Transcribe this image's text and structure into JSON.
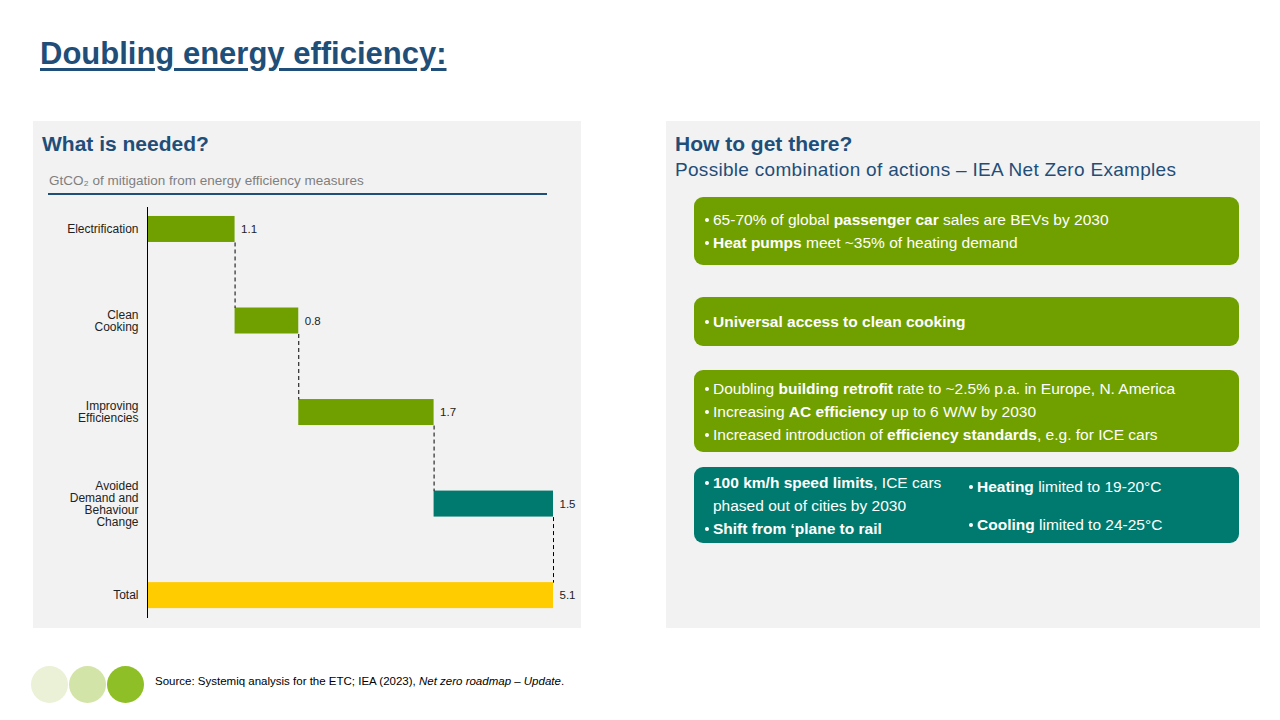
{
  "title": "Doubling energy efficiency:",
  "left_panel": {
    "heading": "What is needed?"
  },
  "chart_data": {
    "type": "waterfall",
    "subtitle": "GtCO₂ of mitigation from energy efficiency measures",
    "orientation": "horizontal",
    "categories": [
      "Electrification",
      "Clean Cooking",
      "Improving Efficiencies",
      "Avoided Demand and Behaviour Change",
      "Total"
    ],
    "values": [
      1.1,
      0.8,
      1.7,
      1.5,
      5.1
    ],
    "colors": [
      "#70a000",
      "#70a000",
      "#70a000",
      "#007a6e",
      "#ffcc00"
    ],
    "xlim": [
      0,
      5.1
    ],
    "data_labels": true,
    "tick_labels": "y"
  },
  "right_panel": {
    "heading": "How to get there?",
    "subheading": "Possible combination of actions – IEA Net Zero Examples",
    "boxes": [
      {
        "color": "#70a000",
        "columns": [
          [
            [
              {
                "t": "65-70% of global "
              },
              {
                "t": "passenger car",
                "b": true
              },
              {
                "t": " sales are BEVs by 2030"
              }
            ],
            [
              {
                "t": "Heat pumps",
                "b": true
              },
              {
                "t": " meet ~35% of heating demand"
              }
            ]
          ]
        ]
      },
      {
        "color": "#70a000",
        "columns": [
          [
            [
              {
                "t": "Universal access to clean cooking",
                "b": true
              }
            ]
          ]
        ]
      },
      {
        "color": "#70a000",
        "columns": [
          [
            [
              {
                "t": "Doubling "
              },
              {
                "t": "building retrofit",
                "b": true
              },
              {
                "t": " rate to ~2.5% p.a. in Europe, N. America"
              }
            ],
            [
              {
                "t": "Increasing "
              },
              {
                "t": "AC efficiency",
                "b": true
              },
              {
                "t": " up to 6 W/W by 2030"
              }
            ],
            [
              {
                "t": "Increased introduction of "
              },
              {
                "t": "efficiency standards",
                "b": true
              },
              {
                "t": ", e.g. for ICE cars"
              }
            ]
          ]
        ]
      },
      {
        "color": "#007a6e",
        "columns": [
          [
            [
              {
                "t": "100 km/h speed limits",
                "b": true
              },
              {
                "t": ", ICE cars phased out of cities by 2030"
              }
            ],
            [
              {
                "t": "Shift from ‘plane to rail",
                "b": true
              }
            ]
          ],
          [
            [
              {
                "t": "Heating",
                "b": true
              },
              {
                "t": " limited to 19-20°C"
              }
            ],
            [
              {
                "t": "Cooling",
                "b": true
              },
              {
                "t": " limited to 24-25°C"
              }
            ]
          ]
        ]
      }
    ]
  },
  "source": [
    {
      "t": "Source: Systemiq analysis for the ETC; IEA (2023), "
    },
    {
      "t": "Net zero roadmap – Update",
      "i": true
    },
    {
      "t": "."
    }
  ]
}
